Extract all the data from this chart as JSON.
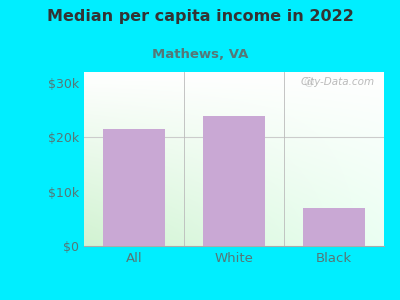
{
  "title": "Median per capita income in 2022",
  "subtitle": "Mathews, VA",
  "categories": [
    "All",
    "White",
    "Black"
  ],
  "values": [
    21500,
    24000,
    7000
  ],
  "bar_color": "#c9a8d4",
  "outer_bg": "#00eeff",
  "title_color": "#333333",
  "subtitle_color": "#557777",
  "tick_color": "#557777",
  "ylim": [
    0,
    32000
  ],
  "yticks": [
    0,
    10000,
    20000,
    30000
  ],
  "ytick_labels": [
    "$0",
    "$10k",
    "$20k",
    "$30k"
  ],
  "watermark": "City-Data.com"
}
